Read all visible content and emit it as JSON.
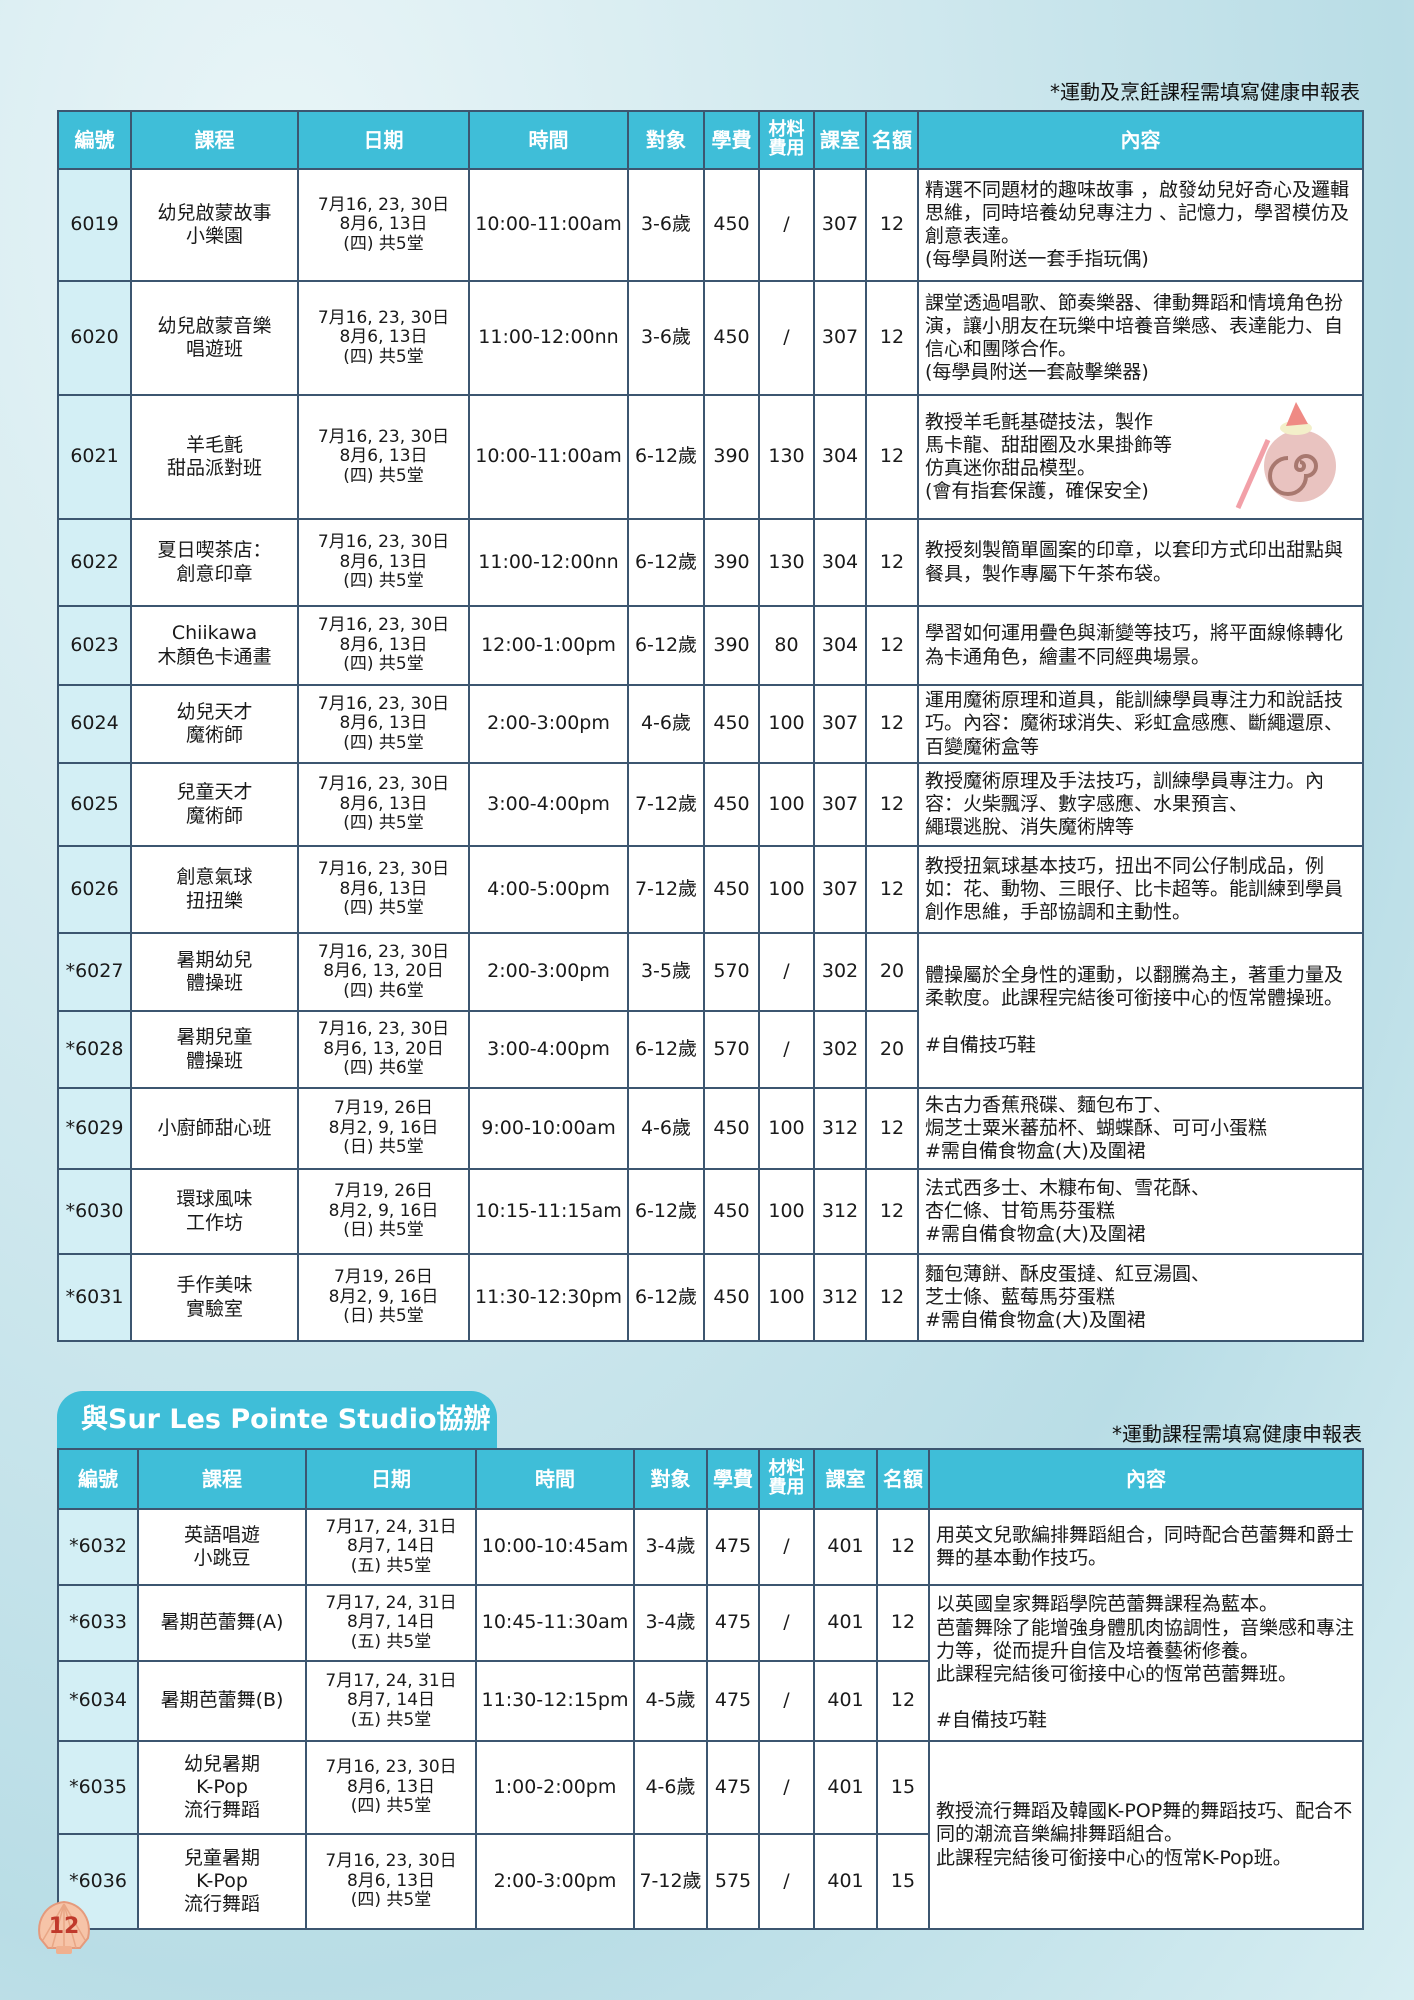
{
  "notes": {
    "top": "*運動及烹飪課程需填寫健康申報表",
    "section2": "*運動課程需填寫健康申報表"
  },
  "headers": [
    "編號",
    "課程",
    "日期",
    "時間",
    "對象",
    "學費",
    "材料\n費用",
    "課室",
    "名額",
    "內容"
  ],
  "section2_title": "與Sur Les Pointe Studio協辦",
  "page_number": "12",
  "colors": {
    "header": "#3fbed8",
    "code_cell": "#d3eff5",
    "border": "#3c5670"
  },
  "table1": [
    {
      "code": "6019",
      "course": "幼兒啟蒙故事\n小樂園",
      "date": "7月16, 23, 30日\n8月6, 13日\n(四) 共5堂",
      "time": "10:00-11:00am",
      "age": "3-6歲",
      "fee": "450",
      "material": "/",
      "room": "307",
      "quota": "12",
      "content": "精選不同題材的趣味故事 ，啟發幼兒好奇心及邏輯思維，同時培養幼兒專注力 、記憶力，學習模仿及創意表達。\n(每學員附送一套手指玩偶)"
    },
    {
      "code": "6020",
      "course": "幼兒啟蒙音樂\n唱遊班",
      "date": "7月16, 23, 30日\n8月6, 13日\n(四) 共5堂",
      "time": "11:00-12:00nn",
      "age": "3-6歲",
      "fee": "450",
      "material": "/",
      "room": "307",
      "quota": "12",
      "content": "課堂透過唱歌、節奏樂器、律動舞蹈和情境角色扮演，讓小朋友在玩樂中培養音樂感、表達能力、自信心和團隊合作。\n(每學員附送一套敲擊樂器)"
    },
    {
      "code": "6021",
      "course": "羊毛氈\n甜品派對班",
      "date": "7月16, 23, 30日\n8月6, 13日\n(四) 共5堂",
      "time": "10:00-11:00am",
      "age": "6-12歲",
      "fee": "390",
      "material": "130",
      "room": "304",
      "quota": "12",
      "content": "教授羊毛氈基礎技法，製作\n馬卡龍、甜甜圈及水果掛飾等\n仿真迷你甜品模型。\n(會有指套保護，確保安全)",
      "image": "felt-cake-keychain"
    },
    {
      "code": "6022",
      "course": "夏日喫茶店：\n創意印章",
      "date": "7月16, 23, 30日\n8月6, 13日\n(四) 共5堂",
      "time": "11:00-12:00nn",
      "age": "6-12歲",
      "fee": "390",
      "material": "130",
      "room": "304",
      "quota": "12",
      "content": "教授刻製簡單圖案的印章，以套印方式印出甜點與餐具，製作專屬下午茶布袋。"
    },
    {
      "code": "6023",
      "course": "Chiikawa\n木顏色卡通畫",
      "date": "7月16, 23, 30日\n8月6, 13日\n(四) 共5堂",
      "time": "12:00-1:00pm",
      "age": "6-12歲",
      "fee": "390",
      "material": "80",
      "room": "304",
      "quota": "12",
      "content": "學習如何運用疊色與漸變等技巧，將平面線條轉化為卡通角色，繪畫不同經典場景。"
    },
    {
      "code": "6024",
      "course": "幼兒天才\n魔術師",
      "date": "7月16, 23, 30日\n8月6, 13日\n(四) 共5堂",
      "time": "2:00-3:00pm",
      "age": "4-6歲",
      "fee": "450",
      "material": "100",
      "room": "307",
      "quota": "12",
      "content": "運用魔術原理和道具，能訓練學員專注力和說話技巧。內容：魔術球消失、彩虹盒感應、斷繩還原、百變魔術盒等"
    },
    {
      "code": "6025",
      "course": "兒童天才\n魔術師",
      "date": "7月16, 23, 30日\n8月6, 13日\n(四) 共5堂",
      "time": "3:00-4:00pm",
      "age": "7-12歲",
      "fee": "450",
      "material": "100",
      "room": "307",
      "quota": "12",
      "content": "教授魔術原理及手法技巧，訓練學員專注力。內容：火柴飄浮、數字感應、水果預言、\n繩環逃脫、消失魔術牌等"
    },
    {
      "code": "6026",
      "course": "創意氣球\n扭扭樂",
      "date": "7月16, 23, 30日\n8月6, 13日\n(四) 共5堂",
      "time": "4:00-5:00pm",
      "age": "7-12歲",
      "fee": "450",
      "material": "100",
      "room": "307",
      "quota": "12",
      "content": "教授扭氣球基本技巧，扭出不同公仔制成品，例如：花、動物、三眼仔、比卡超等。能訓練到學員創作思維，手部協調和主動性。"
    },
    {
      "code": "*6027",
      "course": "暑期幼兒\n體操班",
      "date": "7月16, 23, 30日\n8月6, 13, 20日\n(四) 共6堂",
      "time": "2:00-3:00pm",
      "age": "3-5歲",
      "fee": "570",
      "material": "/",
      "room": "302",
      "quota": "20",
      "content": "體操屬於全身性的運動，以翻騰為主，著重力量及柔軟度。此課程完結後可銜接中心的恆常體操班。\n\n#自備技巧鞋"
    },
    {
      "code": "*6028",
      "course": "暑期兒童\n體操班",
      "date": "7月16, 23, 30日\n8月6, 13, 20日\n(四) 共6堂",
      "time": "3:00-4:00pm",
      "age": "6-12歲",
      "fee": "570",
      "material": "/",
      "room": "302",
      "quota": "20"
    },
    {
      "code": "*6029",
      "course": "小廚師甜心班",
      "date": "7月19, 26日\n8月2, 9, 16日\n(日) 共5堂",
      "time": "9:00-10:00am",
      "age": "4-6歲",
      "fee": "450",
      "material": "100",
      "room": "312",
      "quota": "12",
      "content": "朱古力香蕉飛碟、麵包布丁、\n焗芝士粟米蕃茄杯、蝴蝶酥、可可小蛋糕\n#需自備食物盒(大)及圍裙"
    },
    {
      "code": "*6030",
      "course": "環球風味\n工作坊",
      "date": "7月19, 26日\n8月2, 9, 16日\n(日) 共5堂",
      "time": "10:15-11:15am",
      "age": "6-12歲",
      "fee": "450",
      "material": "100",
      "room": "312",
      "quota": "12",
      "content": "法式西多士、木糠布甸、雪花酥、\n杏仁條、甘筍馬芬蛋糕\n#需自備食物盒(大)及圍裙"
    },
    {
      "code": "*6031",
      "course": "手作美味\n實驗室",
      "date": "7月19, 26日\n8月2, 9, 16日\n(日) 共5堂",
      "time": "11:30-12:30pm",
      "age": "6-12歲",
      "fee": "450",
      "material": "100",
      "room": "312",
      "quota": "12",
      "content": "麵包薄餅、酥皮蛋撻、紅豆湯圓、\n芝士條、藍莓馬芬蛋糕\n#需自備食物盒(大)及圍裙"
    }
  ],
  "table2": [
    {
      "code": "*6032",
      "course": "英語唱遊\n小跳豆",
      "date": "7月17, 24, 31日\n8月7, 14日\n(五) 共5堂",
      "time": "10:00-10:45am",
      "age": "3-4歲",
      "fee": "475",
      "material": "/",
      "room": "401",
      "quota": "12",
      "content": "用英文兒歌編排舞蹈組合，同時配合芭蕾舞和爵士舞的基本動作技巧。"
    },
    {
      "code": "*6033",
      "course": "暑期芭蕾舞(A)",
      "date": "7月17, 24, 31日\n8月7, 14日\n(五) 共5堂",
      "time": "10:45-11:30am",
      "age": "3-4歲",
      "fee": "475",
      "material": "/",
      "room": "401",
      "quota": "12",
      "content": "以英國皇家舞蹈學院芭蕾舞課程為藍本。\n芭蕾舞除了能增強身體肌肉協調性，音樂感和專注力等，從而提升自信及培養藝術修養。\n此課程完結後可銜接中心的恆常芭蕾舞班。\n\n#自備技巧鞋"
    },
    {
      "code": "*6034",
      "course": "暑期芭蕾舞(B)",
      "date": "7月17, 24, 31日\n8月7, 14日\n(五) 共5堂",
      "time": "11:30-12:15pm",
      "age": "4-5歲",
      "fee": "475",
      "material": "/",
      "room": "401",
      "quota": "12"
    },
    {
      "code": "*6035",
      "course": "幼兒暑期\nK-Pop\n流行舞蹈",
      "date": "7月16, 23, 30日\n8月6, 13日\n(四) 共5堂",
      "time": "1:00-2:00pm",
      "age": "4-6歲",
      "fee": "475",
      "material": "/",
      "room": "401",
      "quota": "15",
      "content": "教授流行舞蹈及韓國K-POP舞的舞蹈技巧、配合不同的潮流音樂編排舞蹈組合。\n此課程完結後可銜接中心的恆常K-Pop班。"
    },
    {
      "code": "*6036",
      "course": "兒童暑期\nK-Pop\n流行舞蹈",
      "date": "7月16, 23, 30日\n8月6, 13日\n(四) 共5堂",
      "time": "2:00-3:00pm",
      "age": "7-12歲",
      "fee": "575",
      "material": "/",
      "room": "401",
      "quota": "15"
    }
  ]
}
